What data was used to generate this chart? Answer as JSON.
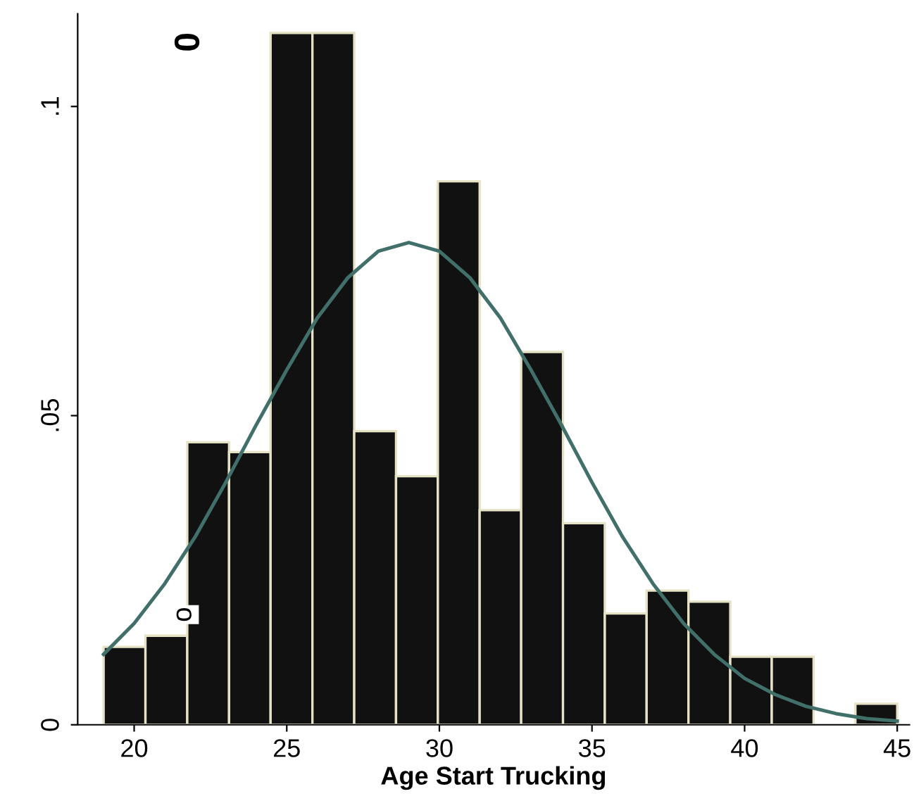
{
  "chart_data": {
    "type": "histogram",
    "xlabel": "Age Start Trucking",
    "bins": [
      19,
      20.37,
      21.74,
      23.11,
      24.47,
      25.84,
      27.21,
      28.58,
      29.95,
      31.32,
      32.68,
      34.05,
      35.42,
      36.79,
      38.16,
      39.53,
      40.89,
      42.26,
      43.63,
      45
    ],
    "values": [
      0.0126,
      0.0144,
      0.0457,
      0.0441,
      0.1119,
      0.1119,
      0.0475,
      0.0402,
      0.0879,
      0.0347,
      0.0603,
      0.0326,
      0.018,
      0.0217,
      0.0199,
      0.011,
      0.011,
      0,
      0.0034
    ],
    "color": "#111111",
    "series": [
      {
        "type": "line",
        "color": "#41706b",
        "x": [
          19,
          20,
          21,
          22,
          23,
          24,
          25,
          26,
          27,
          28,
          29,
          30,
          31,
          32,
          33,
          34,
          35,
          36,
          37,
          38,
          39,
          40,
          41,
          42,
          43,
          44,
          45
        ],
        "values": [
          0.0114,
          0.0164,
          0.0228,
          0.0304,
          0.0392,
          0.0485,
          0.0574,
          0.0658,
          0.0723,
          0.0766,
          0.078,
          0.0766,
          0.0723,
          0.0658,
          0.0574,
          0.0485,
          0.0392,
          0.0304,
          0.0228,
          0.0164,
          0.0114,
          0.0075,
          0.0049,
          0.003,
          0.0018,
          0.001,
          0.0006
        ]
      }
    ],
    "xlim": [
      18.15,
      45.4
    ],
    "ylim": [
      0,
      0.115
    ],
    "xticks": [
      20,
      25,
      30,
      35,
      40,
      45
    ],
    "yticks": [
      0,
      {
        "value": 0.05,
        "label": ".05"
      },
      {
        "value": 0.1,
        "label": ".1"
      }
    ],
    "annotations": [
      "0",
      "o"
    ],
    "grid": false,
    "legend": false
  }
}
